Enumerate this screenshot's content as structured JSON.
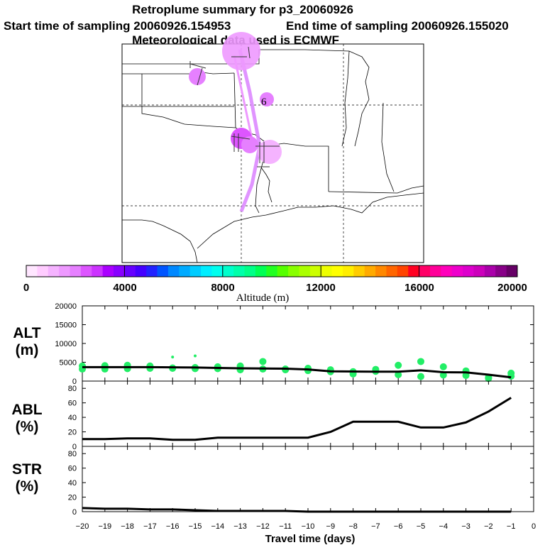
{
  "title": {
    "line1": "Retroplume summary for p3_20060926",
    "start": "Start time of sampling 20060926.154953",
    "end": "End time of sampling 20060926.155020",
    "met": "Meteorological data used is ECMWF"
  },
  "colorbar": {
    "label": "Altitude (m)",
    "ticks": [
      "0",
      "4000",
      "8000",
      "12000",
      "16000",
      "20000"
    ],
    "colors": [
      "#ffe6ff",
      "#ffccff",
      "#f5b3ff",
      "#ee99ff",
      "#e680ff",
      "#dd55ff",
      "#cc33ff",
      "#aa00ff",
      "#8800ff",
      "#6600ff",
      "#4400ff",
      "#2222ff",
      "#0055ff",
      "#0088ff",
      "#00aaff",
      "#00ccff",
      "#00eeff",
      "#00ffee",
      "#00ffcc",
      "#00ffaa",
      "#00ff88",
      "#00ff55",
      "#22ff22",
      "#55ff00",
      "#88ff00",
      "#aaff00",
      "#ccff00",
      "#eeff00",
      "#ffff00",
      "#ffee00",
      "#ffcc00",
      "#ffaa00",
      "#ff8800",
      "#ff6600",
      "#ff4400",
      "#ff0022",
      "#ff0066",
      "#ff0099",
      "#ff00bb",
      "#ee00cc",
      "#dd00cc",
      "#cc00bb",
      "#aa00aa",
      "#880088",
      "#660066"
    ]
  },
  "map": {
    "markers": [
      "6"
    ]
  },
  "chart_data": [
    {
      "type": "scatter",
      "panel_label": [
        "ALT",
        "(m)"
      ],
      "ylim": [
        0,
        20000
      ],
      "yticks": [
        "0",
        "5000",
        "10000",
        "15000",
        "20000"
      ],
      "line": {
        "x": [
          -20,
          -19,
          -18,
          -17,
          -16,
          -15,
          -14,
          -13,
          -12,
          -11,
          -10,
          -9,
          -8,
          -7,
          -6,
          -5,
          -4,
          -3,
          -2,
          -1
        ],
        "y": [
          3700,
          3700,
          3700,
          3700,
          3650,
          3600,
          3500,
          3400,
          3350,
          3300,
          3100,
          2600,
          2550,
          2500,
          2500,
          2850,
          2350,
          2300,
          1700,
          1000
        ]
      },
      "points": {
        "color": "#22ee66",
        "x": [
          -20,
          -20,
          -19,
          -19,
          -18,
          -18,
          -17,
          -17,
          -16,
          -16,
          -16,
          -15,
          -15,
          -15,
          -14,
          -14,
          -13,
          -13,
          -12,
          -12,
          -11,
          -11,
          -10,
          -10,
          -9,
          -9,
          -8,
          -8,
          -7,
          -7,
          -6,
          -6,
          -5,
          -5,
          -4,
          -4,
          -3,
          -3,
          -2,
          -2,
          -1,
          -1
        ],
        "y": [
          3200,
          4000,
          3200,
          4100,
          3300,
          4200,
          3400,
          4000,
          3500,
          6400,
          3400,
          3600,
          6700,
          3300,
          3300,
          3800,
          3000,
          4000,
          3200,
          5200,
          3200,
          3000,
          3400,
          2800,
          3000,
          2500,
          2500,
          1900,
          2600,
          3100,
          1700,
          4200,
          5200,
          1200,
          3800,
          1600,
          1500,
          2700,
          1000,
          700,
          1300,
          2100
        ]
      }
    },
    {
      "type": "line",
      "panel_label": [
        "ABL",
        "(%)"
      ],
      "ylim": [
        0,
        90
      ],
      "yticks": [
        "0",
        "20",
        "40",
        "60",
        "80"
      ],
      "x": [
        -20,
        -19,
        -18,
        -17,
        -16,
        -15,
        -14,
        -13,
        -12,
        -11,
        -10,
        -9,
        -8,
        -7,
        -6,
        -5,
        -4,
        -3,
        -2,
        -1
      ],
      "y": [
        10,
        10,
        11,
        11,
        9,
        9,
        12,
        12,
        12,
        12,
        12,
        20,
        34,
        34,
        34,
        26,
        26,
        33,
        48,
        67
      ]
    },
    {
      "type": "line",
      "panel_label": [
        "STR",
        "(%)"
      ],
      "ylim": [
        0,
        90
      ],
      "yticks": [
        "0",
        "20",
        "40",
        "60",
        "80"
      ],
      "x": [
        -20,
        -19,
        -18,
        -17,
        -16,
        -15,
        -14,
        -13,
        -12,
        -11,
        -10,
        -9,
        -8,
        -7,
        -6,
        -5,
        -4,
        -3,
        -2,
        -1
      ],
      "y": [
        5,
        4,
        4,
        3,
        3,
        2,
        1,
        1,
        1,
        1,
        0,
        0,
        0,
        0,
        0,
        0,
        0,
        0,
        0,
        0
      ]
    }
  ],
  "xaxis": {
    "label": "Travel time (days)",
    "xlim": [
      -20,
      0
    ],
    "ticks": [
      "−20",
      "−19",
      "−18",
      "−17",
      "−16",
      "−15",
      "−14",
      "−13",
      "−12",
      "−11",
      "−10",
      "−9",
      "−8",
      "−7",
      "−6",
      "−5",
      "−4",
      "−3",
      "−2",
      "−1",
      "0"
    ]
  }
}
